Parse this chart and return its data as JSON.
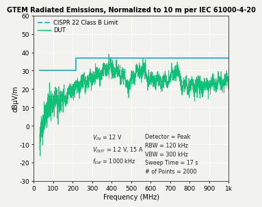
{
  "title": "GTEM Radiated Emissions, Normalized to 10 m per IEC 61000-4-20",
  "xlabel": "Frequency (MHz)",
  "ylabel": "dBμV/m",
  "xlim": [
    0,
    1000
  ],
  "ylim": [
    -30,
    60
  ],
  "yticks": [
    -30,
    -20,
    -10,
    0,
    10,
    20,
    30,
    40,
    50,
    60
  ],
  "xtick_vals": [
    0,
    100,
    200,
    300,
    400,
    500,
    600,
    700,
    800,
    900,
    1000
  ],
  "xtick_labels": [
    "0",
    "100",
    "200",
    "300",
    "400",
    "500",
    "600",
    "700",
    "800",
    "900",
    "1k"
  ],
  "cispr_color": "#29b8cc",
  "dut_color": "#00c070",
  "bg_color": "#f2f2ee",
  "grid_color": "#ffffff",
  "legend_cispr": "CISPR 22 Class B Limit",
  "legend_dut": "DUT",
  "title_fontsize": 7.0,
  "label_fontsize": 7.0,
  "tick_fontsize": 6.5,
  "annot_fontsize": 5.8,
  "legend_fontsize": 6.0
}
